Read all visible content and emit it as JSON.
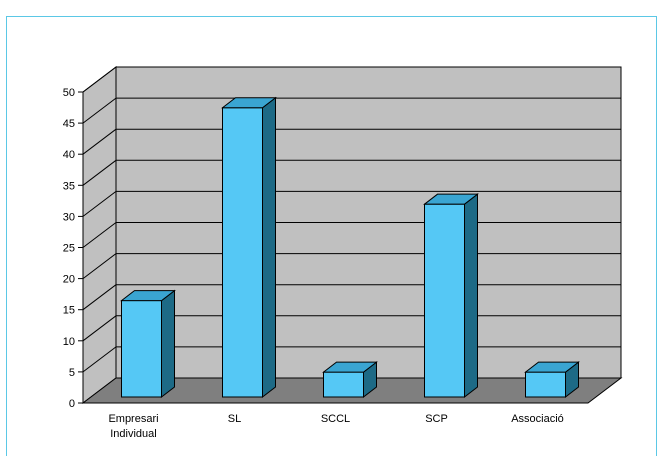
{
  "chart_data": {
    "type": "bar",
    "categories": [
      [
        "Empresari",
        "Individual"
      ],
      [
        "SL"
      ],
      [
        "SCCL"
      ],
      [
        "SCP"
      ],
      [
        "Associació"
      ]
    ],
    "values": [
      15.5,
      46.5,
      4,
      31,
      4
    ],
    "yticks": [
      "0",
      "5",
      "10",
      "15",
      "20",
      "25",
      "30",
      "35",
      "40",
      "45",
      "50"
    ],
    "ylim": [
      0,
      50
    ],
    "grid": true,
    "three_d": true,
    "colors": {
      "bar_front": "#55c8f5",
      "bar_side": "#1d6a86",
      "bar_top": "#3aa5d2",
      "wall": "#c0c0c0",
      "floor": "#7f7f7f",
      "gridline": "#000000",
      "frame": "#5bc8e6"
    }
  }
}
